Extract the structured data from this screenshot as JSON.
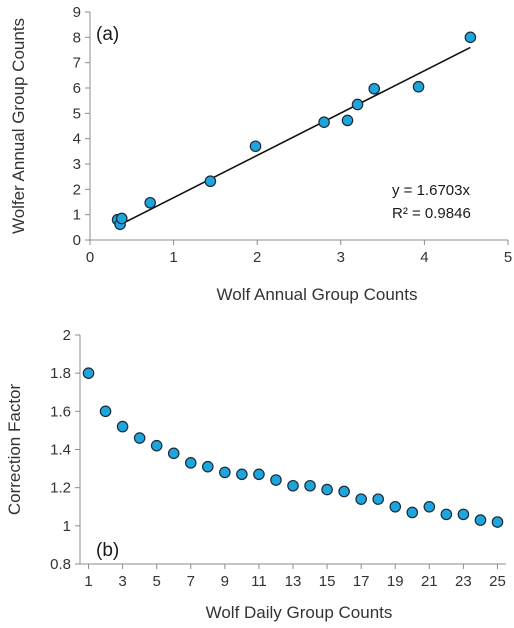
{
  "colors": {
    "marker": "#1ea6dc",
    "marker_edge": "#1a2a3a",
    "axis": "#8c8c8c",
    "text": "#333333"
  },
  "chart_data": [
    {
      "type": "scatter",
      "panel_label": "(a)",
      "xlabel": "Wolf Annual Group Counts",
      "ylabel": "Wolfer Annual Group Counts",
      "xlim": [
        0,
        5
      ],
      "ylim": [
        0,
        9
      ],
      "xticks": [
        0,
        1,
        2,
        3,
        4,
        5
      ],
      "yticks": [
        0,
        1,
        2,
        3,
        4,
        5,
        6,
        7,
        8,
        9
      ],
      "grid": false,
      "points": [
        {
          "x": 0.33,
          "y": 0.8
        },
        {
          "x": 0.36,
          "y": 0.62
        },
        {
          "x": 0.38,
          "y": 0.85
        },
        {
          "x": 0.72,
          "y": 1.47
        },
        {
          "x": 1.44,
          "y": 2.32
        },
        {
          "x": 1.98,
          "y": 3.7
        },
        {
          "x": 2.8,
          "y": 4.65
        },
        {
          "x": 3.08,
          "y": 4.72
        },
        {
          "x": 3.2,
          "y": 5.35
        },
        {
          "x": 3.4,
          "y": 5.97
        },
        {
          "x": 3.93,
          "y": 6.05
        },
        {
          "x": 4.55,
          "y": 8.0
        }
      ],
      "trendline": {
        "slope": 1.6703,
        "x_start": 0.33,
        "x_end": 4.55
      },
      "equation": "y = 1.6703x",
      "r_squared": "R² = 0.9846"
    },
    {
      "type": "scatter",
      "panel_label": "(b)",
      "xlabel": "Wolf Daily Group Counts",
      "ylabel": "Correction Factor",
      "xlim": [
        0.5,
        25.5
      ],
      "ylim": [
        0.8,
        2
      ],
      "xticks": [
        1,
        3,
        5,
        7,
        9,
        11,
        13,
        15,
        17,
        19,
        21,
        23,
        25
      ],
      "yticks": [
        0.8,
        1,
        1.2,
        1.4,
        1.6,
        1.8,
        2
      ],
      "grid": false,
      "x": [
        1,
        2,
        3,
        4,
        5,
        6,
        7,
        8,
        9,
        10,
        11,
        12,
        13,
        14,
        15,
        16,
        17,
        18,
        19,
        20,
        21,
        22,
        23,
        24,
        25
      ],
      "y": [
        1.8,
        1.6,
        1.52,
        1.46,
        1.42,
        1.38,
        1.33,
        1.31,
        1.28,
        1.27,
        1.27,
        1.24,
        1.21,
        1.21,
        1.19,
        1.18,
        1.14,
        1.14,
        1.1,
        1.07,
        1.1,
        1.06,
        1.06,
        1.03,
        1.02
      ]
    }
  ]
}
